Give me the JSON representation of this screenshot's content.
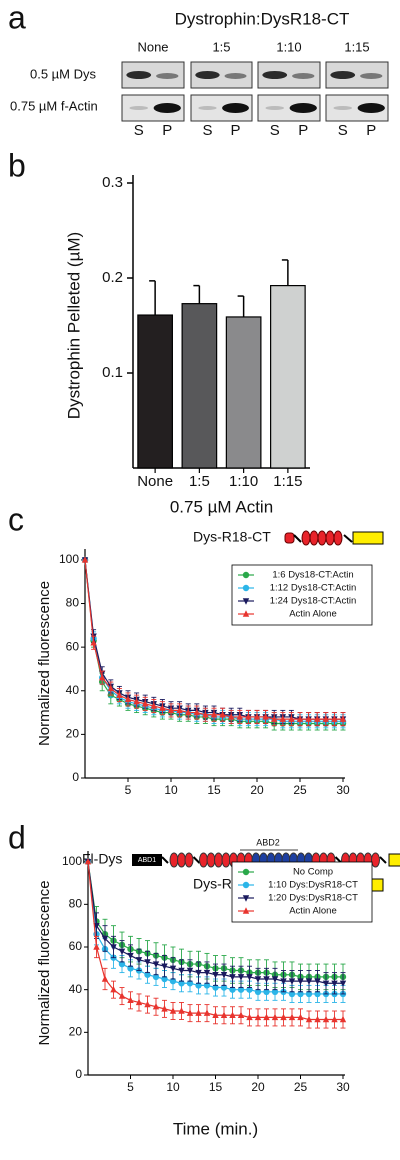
{
  "panel_labels": [
    "a",
    "b",
    "c",
    "d"
  ],
  "panel_a": {
    "title": "Dystrophin:DysR18-CT",
    "columns": [
      "None",
      "1:5",
      "1:10",
      "1:15"
    ],
    "rows": [
      "0.5 µM Dys",
      "0.75 µM f-Actin"
    ],
    "lanes": [
      "S",
      "P"
    ]
  },
  "diagrams": {
    "fl_dys": "Fl-Dys",
    "abd1": "ABD1",
    "abd2": "ABD2",
    "r18_ct": "Dys-R18-CT"
  },
  "chart_data": [
    {
      "type": "bar",
      "x_label": "0.75 µM Actin",
      "y_label": "Dystrophin Pelleted (µM)",
      "categories": [
        "None",
        "1:5",
        "1:10",
        "1:15"
      ],
      "values": [
        0.161,
        0.173,
        0.159,
        0.192
      ],
      "errors": [
        0.036,
        0.019,
        0.022,
        0.027
      ],
      "colors": [
        "#231f20",
        "#58585a",
        "#8a8a8c",
        "#cfd1d0"
      ],
      "ylim": [
        0,
        0.3
      ],
      "yticks": [
        0.1,
        0.2,
        0.3
      ],
      "grid": false
    },
    {
      "type": "line",
      "y_label": "Normalized fluorescence",
      "x": [
        0,
        1,
        2,
        3,
        4,
        5,
        6,
        7,
        8,
        9,
        10,
        11,
        12,
        13,
        14,
        15,
        16,
        17,
        18,
        19,
        20,
        21,
        22,
        23,
        24,
        25,
        26,
        27,
        28,
        29,
        30
      ],
      "xlim": [
        0,
        30
      ],
      "xticks": [
        5,
        10,
        15,
        20,
        25,
        30
      ],
      "ylim": [
        0,
        105
      ],
      "yticks": [
        0,
        20,
        40,
        60,
        80,
        100
      ],
      "legend": "upper right",
      "series": [
        {
          "name": "1:6 Dys18-CT:Actin",
          "color": "#2aa84a",
          "marker": "circle",
          "values": [
            100,
            63,
            44,
            38,
            36,
            34,
            33,
            32,
            31,
            30,
            30,
            29,
            29,
            28,
            28,
            27,
            27,
            27,
            26,
            26,
            26,
            26,
            25,
            25,
            25,
            25,
            25,
            25,
            25,
            25,
            25
          ],
          "errors": [
            0,
            3,
            4,
            4,
            3,
            3,
            3,
            3,
            3,
            3,
            3,
            3,
            3,
            3,
            3,
            3,
            3,
            3,
            3,
            3,
            3,
            3,
            3,
            3,
            3,
            3,
            3,
            3,
            3,
            3,
            3
          ]
        },
        {
          "name": "1:12 Dys18-CT:Actin",
          "color": "#2bb5e8",
          "marker": "circle",
          "values": [
            100,
            64,
            46,
            40,
            37,
            35,
            34,
            33,
            32,
            31,
            31,
            30,
            30,
            29,
            29,
            28,
            28,
            28,
            27,
            27,
            27,
            27,
            27,
            26,
            26,
            26,
            26,
            26,
            26,
            26,
            26
          ],
          "errors": [
            0,
            3,
            3,
            3,
            3,
            3,
            3,
            3,
            3,
            3,
            3,
            3,
            3,
            3,
            3,
            3,
            3,
            3,
            3,
            3,
            3,
            3,
            3,
            3,
            3,
            3,
            3,
            3,
            3,
            3,
            3
          ]
        },
        {
          "name": "1:24 Dys18-CT:Actin",
          "color": "#1a1a5e",
          "marker": "triangle-down",
          "values": [
            100,
            65,
            48,
            42,
            39,
            37,
            36,
            35,
            34,
            33,
            32,
            32,
            31,
            31,
            30,
            30,
            29,
            29,
            29,
            28,
            28,
            28,
            28,
            28,
            28,
            27,
            27,
            27,
            27,
            27,
            27
          ],
          "errors": [
            0,
            3,
            3,
            3,
            3,
            3,
            3,
            3,
            3,
            3,
            3,
            3,
            3,
            3,
            3,
            3,
            3,
            3,
            3,
            3,
            3,
            3,
            3,
            3,
            3,
            3,
            3,
            3,
            3,
            3,
            3
          ]
        },
        {
          "name": "Actin Alone",
          "color": "#e8342e",
          "marker": "triangle-up",
          "values": [
            100,
            62,
            46,
            41,
            38,
            36,
            35,
            34,
            33,
            32,
            31,
            31,
            30,
            30,
            29,
            29,
            29,
            28,
            28,
            28,
            28,
            28,
            27,
            27,
            27,
            27,
            27,
            27,
            27,
            27,
            27
          ],
          "errors": [
            0,
            3,
            3,
            3,
            3,
            3,
            3,
            3,
            3,
            3,
            3,
            3,
            3,
            3,
            3,
            3,
            3,
            3,
            3,
            3,
            3,
            3,
            3,
            3,
            3,
            3,
            3,
            3,
            3,
            3,
            3
          ]
        }
      ]
    },
    {
      "type": "line",
      "y_label": "Normalized fluorescence",
      "x_label": "Time (min.)",
      "x": [
        0,
        1,
        2,
        3,
        4,
        5,
        6,
        7,
        8,
        9,
        10,
        11,
        12,
        13,
        14,
        15,
        16,
        17,
        18,
        19,
        20,
        21,
        22,
        23,
        24,
        25,
        26,
        27,
        28,
        29,
        30
      ],
      "xlim": [
        0,
        30
      ],
      "xticks": [
        5,
        10,
        15,
        20,
        25,
        30
      ],
      "ylim": [
        0,
        105
      ],
      "yticks": [
        0,
        20,
        40,
        60,
        80,
        100
      ],
      "legend": "upper right",
      "series": [
        {
          "name": "No Comp",
          "color": "#2aa84a",
          "marker": "circle",
          "values": [
            100,
            72,
            66,
            63,
            61,
            59,
            58,
            57,
            56,
            55,
            54,
            53,
            52,
            52,
            51,
            50,
            50,
            49,
            49,
            48,
            48,
            48,
            47,
            47,
            47,
            46,
            46,
            46,
            46,
            46,
            46
          ],
          "errors": [
            0,
            7,
            7,
            7,
            6,
            6,
            6,
            6,
            6,
            6,
            6,
            6,
            6,
            6,
            6,
            6,
            6,
            6,
            6,
            6,
            6,
            6,
            6,
            6,
            6,
            6,
            6,
            6,
            6,
            6,
            6
          ]
        },
        {
          "name": "1:10 Dys:DysR18-CT",
          "color": "#2bb5e8",
          "marker": "circle",
          "values": [
            100,
            66,
            59,
            55,
            52,
            50,
            49,
            47,
            46,
            45,
            44,
            43,
            43,
            42,
            42,
            41,
            41,
            40,
            40,
            40,
            39,
            39,
            39,
            39,
            38,
            38,
            38,
            38,
            38,
            38,
            38
          ],
          "errors": [
            0,
            5,
            5,
            5,
            4,
            4,
            4,
            4,
            4,
            4,
            4,
            4,
            4,
            4,
            4,
            4,
            4,
            4,
            4,
            4,
            4,
            4,
            4,
            4,
            4,
            4,
            4,
            4,
            4,
            4,
            4
          ]
        },
        {
          "name": "1:20 Dys:DysR18-CT",
          "color": "#1a1a5e",
          "marker": "triangle-down",
          "values": [
            100,
            70,
            64,
            60,
            58,
            56,
            54,
            53,
            52,
            51,
            50,
            49,
            49,
            48,
            48,
            47,
            47,
            46,
            46,
            46,
            45,
            45,
            45,
            44,
            44,
            44,
            44,
            44,
            43,
            43,
            43
          ],
          "errors": [
            0,
            6,
            6,
            5,
            5,
            5,
            5,
            5,
            5,
            5,
            5,
            5,
            5,
            5,
            5,
            5,
            5,
            5,
            5,
            5,
            5,
            5,
            5,
            5,
            5,
            5,
            5,
            5,
            5,
            5,
            5
          ]
        },
        {
          "name": "Actin Alone",
          "color": "#e8342e",
          "marker": "triangle-up",
          "values": [
            100,
            60,
            45,
            40,
            37,
            35,
            34,
            33,
            32,
            31,
            30,
            30,
            29,
            29,
            29,
            28,
            28,
            28,
            28,
            27,
            27,
            27,
            27,
            27,
            27,
            27,
            26,
            26,
            26,
            26,
            26
          ],
          "errors": [
            0,
            5,
            5,
            4,
            4,
            4,
            4,
            4,
            4,
            4,
            4,
            4,
            4,
            4,
            4,
            4,
            4,
            4,
            4,
            4,
            4,
            4,
            4,
            4,
            4,
            4,
            4,
            4,
            4,
            4,
            4
          ]
        }
      ]
    }
  ]
}
